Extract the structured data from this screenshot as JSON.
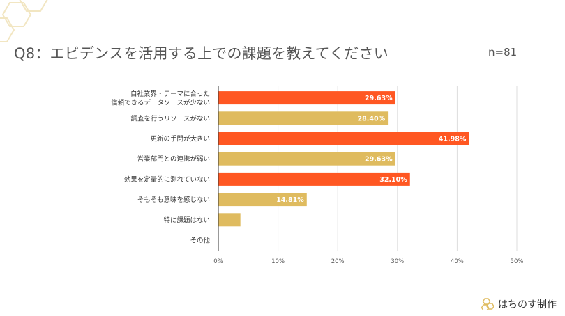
{
  "header": {
    "title": "Q8：エビデンスを活用する上での課題を教えてください",
    "sample_size": "n=81"
  },
  "footer": {
    "brand": "はちのす制作",
    "logo_icon": "honeycomb-icon"
  },
  "colors": {
    "highlight": "#ff5722",
    "default": "#dfbb5f",
    "gridline": "#dddddd",
    "axis": "#333333",
    "decoration": "#f2e6c2"
  },
  "chart_data": {
    "type": "bar",
    "orientation": "horizontal",
    "categories": [
      [
        "自社業界・テーマに合った",
        "信頼できるデータソースが少ない"
      ],
      [
        "調査を行うリソースがない"
      ],
      [
        "更新の手間が大きい"
      ],
      [
        "営業部門との連携が弱い"
      ],
      [
        "効果を定量的に測れていない"
      ],
      [
        "そもそも意味を感じない"
      ],
      [
        "特に課題はない"
      ],
      [
        "その他"
      ]
    ],
    "values": [
      29.63,
      28.4,
      41.98,
      29.63,
      32.1,
      14.81,
      3.7,
      0
    ],
    "data_labels": [
      "29.63%",
      "28.40%",
      "41.98%",
      "29.63%",
      "32.10%",
      "14.81%",
      "",
      ""
    ],
    "highlighted": [
      true,
      false,
      true,
      false,
      true,
      false,
      false,
      false
    ],
    "xlim": [
      0,
      50
    ],
    "x_ticks": [
      0,
      10,
      20,
      30,
      40,
      50
    ],
    "x_tick_labels": [
      "0%",
      "10%",
      "20%",
      "30%",
      "40%",
      "50%"
    ],
    "grid": true
  }
}
